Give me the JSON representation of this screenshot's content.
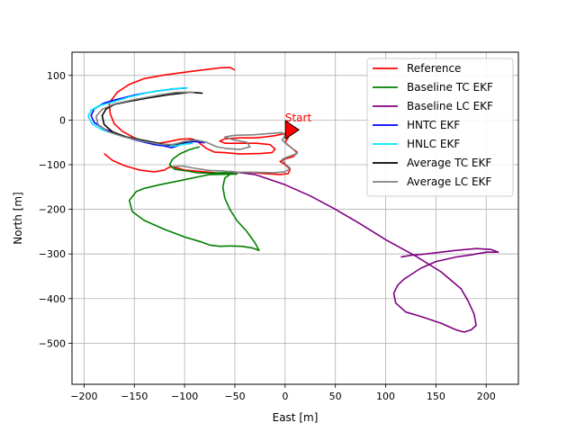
{
  "chart_data": {
    "type": "line",
    "title": "",
    "xlabel": "East [m]",
    "ylabel": "North [m]",
    "xlim": [
      -212,
      232
    ],
    "ylim": [
      -592,
      152
    ],
    "xticks": [
      -200,
      -150,
      -100,
      -50,
      0,
      50,
      100,
      150,
      200
    ],
    "yticks": [
      -500,
      -400,
      -300,
      -200,
      -100,
      0,
      100
    ],
    "tick_labels_x": [
      "−200",
      "−150",
      "−100",
      "−50",
      "0",
      "50",
      "100",
      "150",
      "200"
    ],
    "tick_labels_y": [
      "−500",
      "−400",
      "−300",
      "−200",
      "−100",
      "0",
      "100"
    ],
    "grid": true,
    "legend_position": "top-right",
    "annotation": {
      "text": "Start",
      "x": 0,
      "y": 5,
      "color": "#ff0000"
    },
    "start_marker": {
      "x": 3,
      "y": -22,
      "color": "#ff0000"
    },
    "series": [
      {
        "name": "Reference",
        "color": "#ff0000",
        "points": [
          [
            -50,
            112
          ],
          [
            -55,
            118
          ],
          [
            -65,
            117
          ],
          [
            -90,
            110
          ],
          [
            -120,
            101
          ],
          [
            -140,
            93
          ],
          [
            -155,
            80
          ],
          [
            -167,
            62
          ],
          [
            -175,
            38
          ],
          [
            -174,
            14
          ],
          [
            -170,
            -8
          ],
          [
            -162,
            -25
          ],
          [
            -150,
            -40
          ],
          [
            -138,
            -49
          ],
          [
            -125,
            -52
          ],
          [
            -115,
            -48
          ],
          [
            -104,
            -43
          ],
          [
            -94,
            -42
          ],
          [
            -88,
            -46
          ],
          [
            -85,
            -52
          ],
          [
            -78,
            -64
          ],
          [
            -70,
            -72
          ],
          [
            -60,
            -73
          ],
          [
            -45,
            -76
          ],
          [
            -25,
            -75
          ],
          [
            -13,
            -73
          ],
          [
            -10,
            -65
          ],
          [
            -15,
            -55
          ],
          [
            -28,
            -52
          ],
          [
            -45,
            -52
          ],
          [
            -60,
            -52
          ],
          [
            -65,
            -47
          ],
          [
            -60,
            -42
          ],
          [
            -45,
            -40
          ],
          [
            -30,
            -40
          ],
          [
            -20,
            -38
          ],
          [
            -10,
            -35
          ],
          [
            0,
            -30
          ],
          [
            3,
            -32
          ],
          [
            3,
            -40
          ],
          [
            0,
            -50
          ],
          [
            5,
            -60
          ],
          [
            12,
            -72
          ],
          [
            8,
            -82
          ],
          [
            0,
            -87
          ],
          [
            -5,
            -93
          ],
          [
            0,
            -100
          ],
          [
            5,
            -110
          ],
          [
            3,
            -120
          ],
          [
            -5,
            -122
          ],
          [
            -20,
            -120
          ],
          [
            -35,
            -117
          ],
          [
            -50,
            -118
          ],
          [
            -60,
            -120
          ],
          [
            -70,
            -118
          ],
          [
            -85,
            -115
          ],
          [
            -100,
            -112
          ],
          [
            -108,
            -107
          ],
          [
            -115,
            -105
          ],
          [
            -120,
            -112
          ],
          [
            -130,
            -116
          ],
          [
            -145,
            -112
          ],
          [
            -160,
            -102
          ],
          [
            -172,
            -90
          ],
          [
            -180,
            -75
          ]
        ]
      },
      {
        "name": "Baseline TC EKF",
        "color": "#008000",
        "points": [
          [
            -85,
            -60
          ],
          [
            -95,
            -66
          ],
          [
            -105,
            -76
          ],
          [
            -112,
            -88
          ],
          [
            -115,
            -100
          ],
          [
            -110,
            -110
          ],
          [
            -98,
            -114
          ],
          [
            -88,
            -118
          ],
          [
            -75,
            -119
          ],
          [
            -62,
            -118
          ],
          [
            -55,
            -118
          ],
          [
            -48,
            -121
          ],
          [
            -75,
            -122
          ],
          [
            -105,
            -136
          ],
          [
            -125,
            -145
          ],
          [
            -140,
            -153
          ],
          [
            -148,
            -160
          ],
          [
            -155,
            -180
          ],
          [
            -152,
            -205
          ],
          [
            -140,
            -225
          ],
          [
            -120,
            -245
          ],
          [
            -100,
            -262
          ],
          [
            -85,
            -272
          ],
          [
            -75,
            -280
          ],
          [
            -65,
            -283
          ],
          [
            -55,
            -282
          ],
          [
            -43,
            -283
          ],
          [
            -32,
            -287
          ],
          [
            -26,
            -292
          ],
          [
            -30,
            -275
          ],
          [
            -38,
            -250
          ],
          [
            -48,
            -225
          ],
          [
            -55,
            -200
          ],
          [
            -60,
            -175
          ],
          [
            -62,
            -150
          ],
          [
            -60,
            -130
          ],
          [
            -55,
            -122
          ]
        ]
      },
      {
        "name": "Baseline LC EKF",
        "color": "#800080",
        "points": [
          [
            -55,
            -115
          ],
          [
            -30,
            -122
          ],
          [
            0,
            -145
          ],
          [
            25,
            -170
          ],
          [
            50,
            -200
          ],
          [
            75,
            -233
          ],
          [
            100,
            -268
          ],
          [
            130,
            -305
          ],
          [
            155,
            -340
          ],
          [
            175,
            -378
          ],
          [
            182,
            -405
          ],
          [
            188,
            -435
          ],
          [
            190,
            -460
          ],
          [
            185,
            -470
          ],
          [
            178,
            -475
          ],
          [
            170,
            -470
          ],
          [
            155,
            -455
          ],
          [
            135,
            -440
          ],
          [
            120,
            -430
          ],
          [
            110,
            -410
          ],
          [
            108,
            -388
          ],
          [
            112,
            -370
          ],
          [
            118,
            -357
          ],
          [
            126,
            -345
          ],
          [
            135,
            -332
          ],
          [
            150,
            -317
          ],
          [
            170,
            -307
          ],
          [
            185,
            -302
          ],
          [
            200,
            -296
          ],
          [
            212,
            -296
          ],
          [
            205,
            -290
          ],
          [
            190,
            -288
          ],
          [
            170,
            -292
          ],
          [
            140,
            -300
          ],
          [
            125,
            -303
          ],
          [
            115,
            -307
          ]
        ]
      },
      {
        "name": "HNTC EKF",
        "color": "#0000ff",
        "points": [
          [
            -97,
            72
          ],
          [
            -110,
            70
          ],
          [
            -130,
            64
          ],
          [
            -150,
            56
          ],
          [
            -168,
            46
          ],
          [
            -180,
            38
          ],
          [
            -190,
            25
          ],
          [
            -193,
            10
          ],
          [
            -190,
            -5
          ],
          [
            -180,
            -20
          ],
          [
            -165,
            -33
          ],
          [
            -150,
            -44
          ],
          [
            -130,
            -55
          ],
          [
            -120,
            -58
          ],
          [
            -113,
            -62
          ],
          [
            -105,
            -56
          ],
          [
            -98,
            -50
          ],
          [
            -90,
            -48
          ],
          [
            -80,
            -51
          ]
        ]
      },
      {
        "name": "HNLC EKF",
        "color": "#00e5ff",
        "points": [
          [
            -97,
            72
          ],
          [
            -112,
            70
          ],
          [
            -135,
            62
          ],
          [
            -155,
            52
          ],
          [
            -172,
            40
          ],
          [
            -185,
            32
          ],
          [
            -193,
            22
          ],
          [
            -196,
            8
          ],
          [
            -192,
            -8
          ],
          [
            -182,
            -22
          ],
          [
            -168,
            -32
          ],
          [
            -150,
            -42
          ],
          [
            -128,
            -53
          ],
          [
            -118,
            -56
          ],
          [
            -110,
            -58
          ],
          [
            -100,
            -54
          ],
          [
            -92,
            -52
          ]
        ]
      },
      {
        "name": "Average TC EKF",
        "color": "#000000",
        "points": [
          [
            -82,
            60
          ],
          [
            -95,
            62
          ],
          [
            -115,
            57
          ],
          [
            -135,
            50
          ],
          [
            -155,
            42
          ],
          [
            -170,
            35
          ],
          [
            -178,
            25
          ],
          [
            -182,
            10
          ],
          [
            -180,
            -10
          ],
          [
            -172,
            -26
          ],
          [
            -158,
            -38
          ],
          [
            -142,
            -45
          ],
          [
            -126,
            -52
          ],
          [
            -116,
            -56
          ],
          [
            -108,
            -54
          ],
          [
            -98,
            -48
          ],
          [
            -90,
            -44
          ]
        ]
      },
      {
        "name": "Average LC EKF",
        "color": "#808080",
        "points": [
          [
            -90,
            62
          ],
          [
            -108,
            62
          ],
          [
            -128,
            55
          ],
          [
            -150,
            46
          ],
          [
            -170,
            36
          ],
          [
            -182,
            24
          ],
          [
            -188,
            8
          ],
          [
            -186,
            -10
          ],
          [
            -176,
            -26
          ],
          [
            -160,
            -38
          ],
          [
            -140,
            -48
          ],
          [
            -125,
            -54
          ],
          [
            -112,
            -55
          ],
          [
            -100,
            -48
          ],
          [
            -88,
            -45
          ],
          [
            -78,
            -50
          ],
          [
            -68,
            -60
          ],
          [
            -58,
            -64
          ],
          [
            -45,
            -66
          ],
          [
            -35,
            -60
          ],
          [
            -38,
            -50
          ],
          [
            -52,
            -44
          ],
          [
            -60,
            -38
          ],
          [
            -50,
            -34
          ],
          [
            -32,
            -33
          ],
          [
            -15,
            -30
          ],
          [
            -3,
            -28
          ],
          [
            0,
            -34
          ],
          [
            -3,
            -45
          ],
          [
            2,
            -55
          ],
          [
            8,
            -65
          ],
          [
            12,
            -75
          ],
          [
            3,
            -82
          ],
          [
            -3,
            -88
          ],
          [
            0,
            -98
          ],
          [
            5,
            -108
          ],
          [
            0,
            -116
          ],
          [
            -12,
            -118
          ],
          [
            -30,
            -117
          ],
          [
            -50,
            -117
          ],
          [
            -62,
            -114
          ],
          [
            -75,
            -113
          ],
          [
            -90,
            -108
          ],
          [
            -102,
            -103
          ],
          [
            -112,
            -104
          ]
        ]
      }
    ]
  }
}
